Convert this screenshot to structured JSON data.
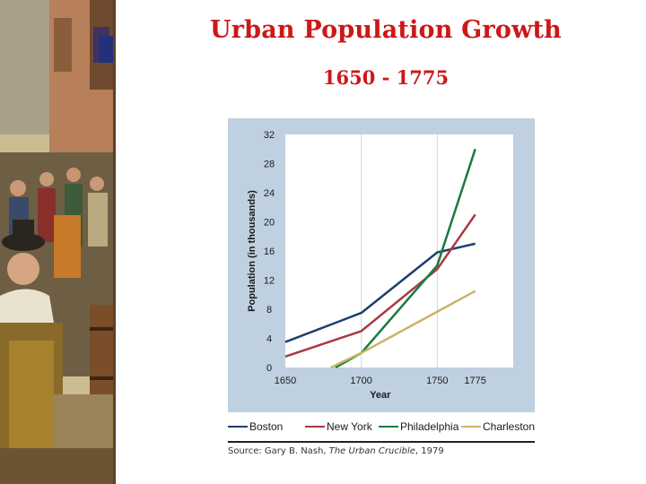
{
  "slide": {
    "title": "Urban Population Growth",
    "subtitle": "1650 - 1775"
  },
  "colors": {
    "title": "#cc1818",
    "panel_background": "#bfd0e0",
    "Boston": "#1f3f6e",
    "New York": "#a83a45",
    "Philadelphia": "#1b7a3e",
    "Charleston": "#c9b465"
  },
  "chart_data": {
    "type": "line",
    "ylabel": "Population (in thousands)",
    "xlabel": "Year",
    "x_ticks": [
      "1650",
      "1700",
      "1750",
      "1775"
    ],
    "y_ticks": [
      "0",
      "4",
      "8",
      "12",
      "16",
      "20",
      "24",
      "28",
      "32"
    ],
    "xlim": [
      1650,
      1800
    ],
    "ylim": [
      0,
      32
    ],
    "grid": "vertical lines at 1700 and 1750",
    "series": [
      {
        "name": "Boston",
        "color": "#1f3f6e",
        "points": [
          [
            1650,
            3.5
          ],
          [
            1700,
            7.5
          ],
          [
            1750,
            15.8
          ],
          [
            1775,
            17
          ]
        ]
      },
      {
        "name": "New York",
        "color": "#a83a45",
        "points": [
          [
            1650,
            1.5
          ],
          [
            1700,
            5
          ],
          [
            1750,
            13.5
          ],
          [
            1775,
            21
          ]
        ]
      },
      {
        "name": "Philadelphia",
        "color": "#1b7a3e",
        "points": [
          [
            1683,
            0
          ],
          [
            1700,
            2
          ],
          [
            1750,
            14
          ],
          [
            1775,
            30
          ]
        ]
      },
      {
        "name": "Charleston",
        "color": "#c9b465",
        "points": [
          [
            1680,
            0
          ],
          [
            1700,
            2
          ],
          [
            1775,
            10.5
          ]
        ]
      }
    ],
    "legend_position": "bottom"
  },
  "legend": [
    {
      "label": "Boston",
      "color": "#1f3f6e"
    },
    {
      "label": "New York",
      "color": "#a83a45"
    },
    {
      "label": "Philadelphia",
      "color": "#1b7a3e"
    },
    {
      "label": "Charleston",
      "color": "#c9b465"
    }
  ],
  "source": {
    "prefix": "Source: Gary B. Nash, ",
    "work": "The Urban Crucible",
    "suffix": ", 1979"
  }
}
